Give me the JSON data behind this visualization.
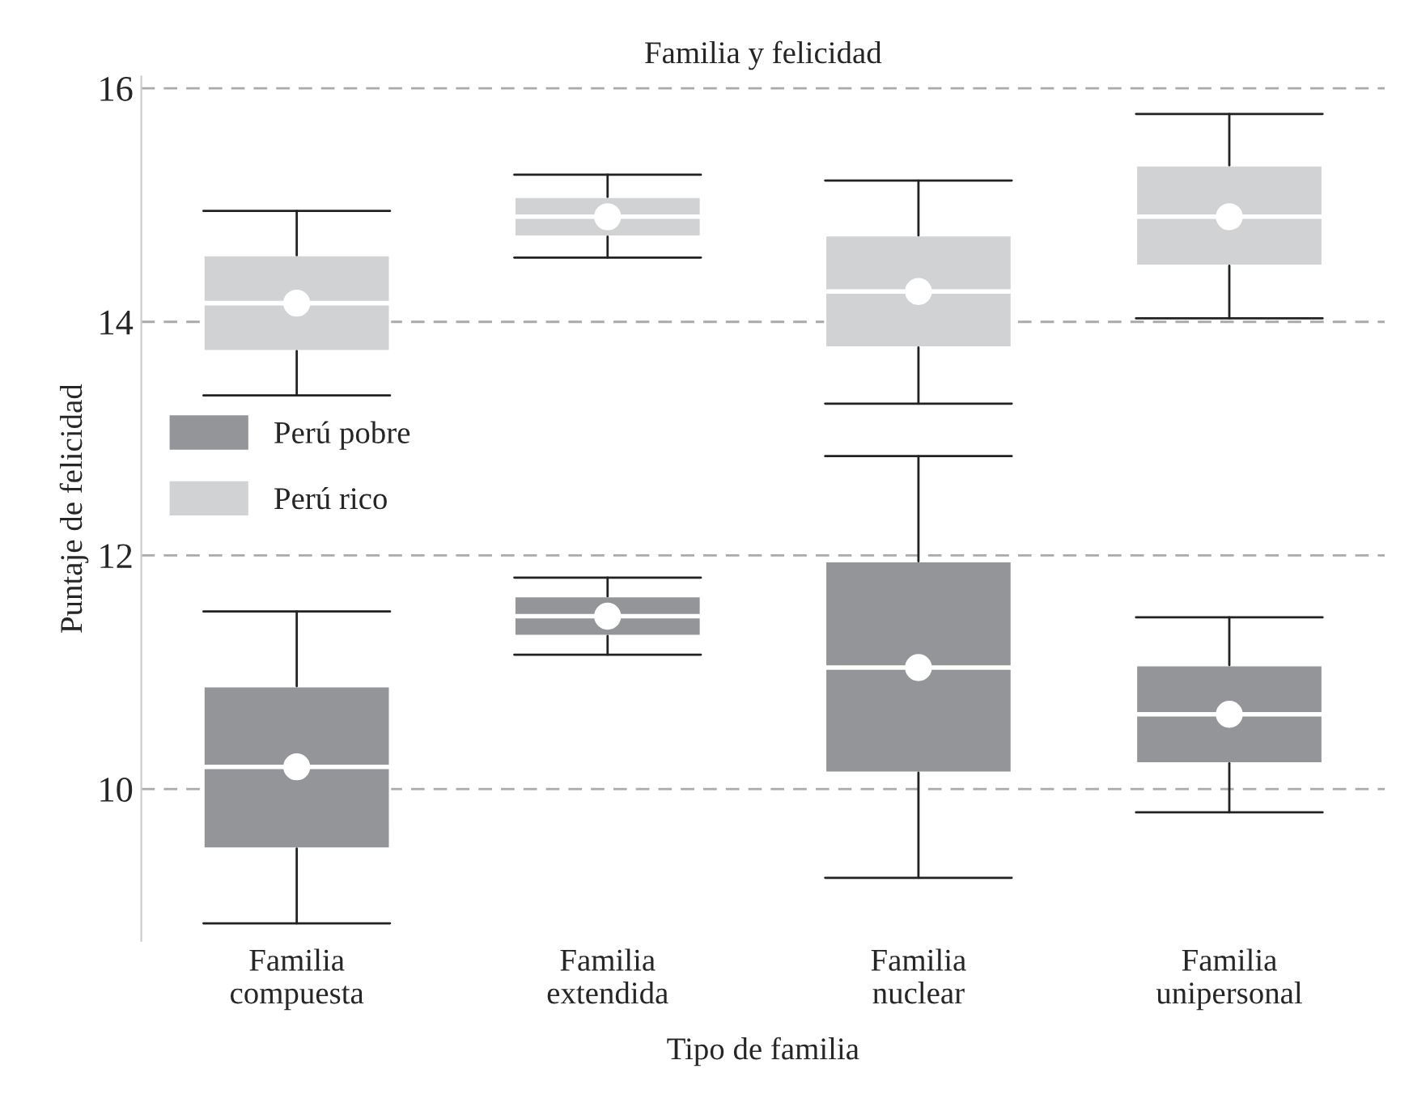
{
  "chart_data": {
    "type": "box",
    "title": "Familia y felicidad",
    "xlabel": "Tipo de familia",
    "ylabel": "Puntaje de felicidad",
    "categories": [
      "Familia\ncompuesta",
      "Familia\nextendida",
      "Familia\nnuclear",
      "Familia\nunipersonal"
    ],
    "ylim": [
      8.7,
      16.1
    ],
    "yticks": [
      10,
      12,
      14,
      16
    ],
    "grid": "y",
    "legend": "left",
    "series": [
      {
        "name": "Perú pobre",
        "color": "#939598",
        "boxes": [
          {
            "low": 8.85,
            "q1": 9.49,
            "median": 10.19,
            "q3": 10.88,
            "high": 11.52,
            "mean": 10.19
          },
          {
            "low": 11.15,
            "q1": 11.31,
            "median": 11.48,
            "q3": 11.65,
            "high": 11.81,
            "mean": 11.48
          },
          {
            "low": 9.24,
            "q1": 10.14,
            "median": 11.04,
            "q3": 11.95,
            "high": 12.85,
            "mean": 11.04
          },
          {
            "low": 9.8,
            "q1": 10.22,
            "median": 10.64,
            "q3": 11.06,
            "high": 11.47,
            "mean": 10.64
          }
        ]
      },
      {
        "name": "Perú rico",
        "color": "#d1d2d4",
        "boxes": [
          {
            "low": 13.37,
            "q1": 13.75,
            "median": 14.16,
            "q3": 14.57,
            "high": 14.95,
            "mean": 14.16
          },
          {
            "low": 14.55,
            "q1": 14.73,
            "median": 14.9,
            "q3": 15.07,
            "high": 15.26,
            "mean": 14.9
          },
          {
            "low": 13.3,
            "q1": 13.78,
            "median": 14.26,
            "q3": 14.74,
            "high": 15.21,
            "mean": 14.26
          },
          {
            "low": 14.03,
            "q1": 14.48,
            "median": 14.9,
            "q3": 15.34,
            "high": 15.78,
            "mean": 14.9
          }
        ]
      }
    ]
  }
}
